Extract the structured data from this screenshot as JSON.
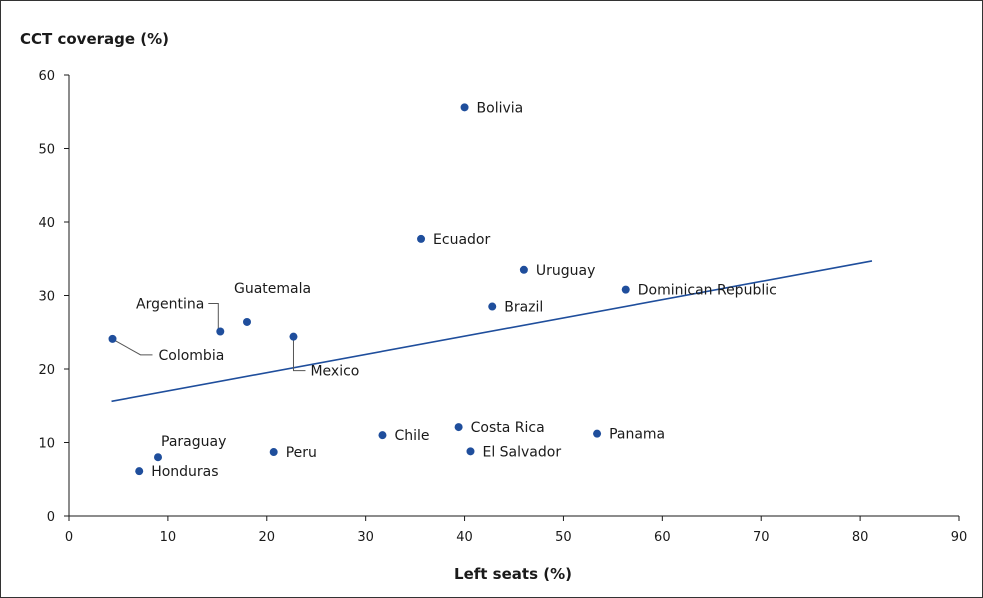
{
  "chart_data": {
    "type": "scatter",
    "ylabel": "CCT coverage (%)",
    "xlabel": "Left seats (%)",
    "xlim": [
      0,
      90
    ],
    "ylim": [
      0,
      60
    ],
    "x_ticks": [
      0,
      10,
      20,
      30,
      40,
      50,
      60,
      70,
      80,
      90
    ],
    "y_ticks": [
      0,
      10,
      20,
      30,
      40,
      50,
      60
    ],
    "grid": false,
    "point_color": "#1f4e9c",
    "trendline": {
      "x": [
        4.3,
        81.2
      ],
      "y": [
        15.6,
        34.7
      ],
      "color": "#1f4e9c"
    },
    "points": [
      {
        "label": "Bolivia",
        "x": 40.0,
        "y": 55.6
      },
      {
        "label": "Ecuador",
        "x": 35.6,
        "y": 37.7
      },
      {
        "label": "Uruguay",
        "x": 46.0,
        "y": 33.5
      },
      {
        "label": "Dominican Republic",
        "x": 56.3,
        "y": 30.8
      },
      {
        "label": "Brazil",
        "x": 42.8,
        "y": 28.5
      },
      {
        "label": "Argentina",
        "x": 15.3,
        "y": 25.1
      },
      {
        "label": "Guatemala",
        "x": 18.0,
        "y": 26.4
      },
      {
        "label": "Mexico",
        "x": 22.7,
        "y": 24.4
      },
      {
        "label": "Colombia",
        "x": 4.4,
        "y": 24.1
      },
      {
        "label": "Chile",
        "x": 31.7,
        "y": 11.0
      },
      {
        "label": "Costa Rica",
        "x": 39.4,
        "y": 12.1
      },
      {
        "label": "Panama",
        "x": 53.4,
        "y": 11.2
      },
      {
        "label": "El Salvador",
        "x": 40.6,
        "y": 8.8
      },
      {
        "label": "Peru",
        "x": 20.7,
        "y": 8.7
      },
      {
        "label": "Paraguay",
        "x": 9.0,
        "y": 8.0
      },
      {
        "label": "Honduras",
        "x": 7.1,
        "y": 6.1
      }
    ]
  }
}
